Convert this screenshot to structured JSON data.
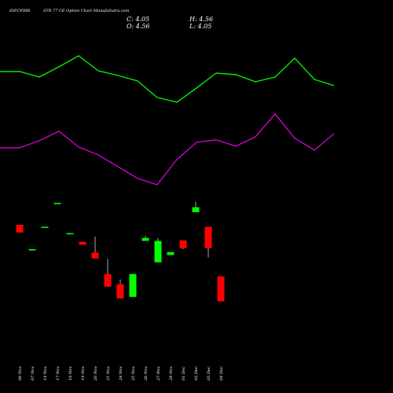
{
  "header": {
    "symbol": "IDFCFIRB",
    "subtitle": "STR 77 CE Option  Chart MunafaSutra.com",
    "close": "C: 4.05",
    "open": "O: 4.56",
    "high": "H: 4.56",
    "low": "L: 4.05"
  },
  "colors": {
    "background": "#000000",
    "up": "#00ff00",
    "down": "#ff0000",
    "line_green": "#00ee00",
    "line_magenta": "#cc00cc",
    "text": "#ffffff"
  },
  "chart_data": {
    "type": "candlestick",
    "categories": [
      "06 Nov",
      "07 Nov",
      "14 Nov",
      "17 Nov",
      "18 Nov",
      "19 Nov",
      "20 Nov",
      "21 Nov",
      "24 Nov",
      "25 Nov",
      "26 Nov",
      "27 Nov",
      "28 Nov",
      "01 Dec",
      "02 Dec",
      "03 Dec",
      "04 Dec"
    ],
    "candles": [
      {
        "open": 5.62,
        "high": 5.62,
        "low": 5.46,
        "close": 5.46
      },
      {
        "open": 5.12,
        "high": 5.12,
        "low": 5.12,
        "close": 5.12
      },
      {
        "open": 5.58,
        "high": 5.58,
        "low": 5.58,
        "close": 5.58
      },
      {
        "open": 6.07,
        "high": 6.07,
        "low": 6.07,
        "close": 6.07
      },
      {
        "open": 5.45,
        "high": 5.45,
        "low": 5.45,
        "close": 5.45
      },
      {
        "open": 5.27,
        "high": 5.27,
        "low": 5.21,
        "close": 5.21
      },
      {
        "open": 5.05,
        "high": 5.38,
        "low": 4.93,
        "close": 4.93
      },
      {
        "open": 4.61,
        "high": 4.92,
        "low": 4.35,
        "close": 4.35
      },
      {
        "open": 4.4,
        "high": 4.5,
        "low": 4.11,
        "close": 4.11
      },
      {
        "open": 4.14,
        "high": 4.61,
        "low": 4.14,
        "close": 4.61
      },
      {
        "open": 5.29,
        "high": 5.39,
        "low": 5.29,
        "close": 5.35
      },
      {
        "open": 4.85,
        "high": 5.35,
        "low": 4.85,
        "close": 5.29
      },
      {
        "open": 5.0,
        "high": 5.06,
        "low": 5.0,
        "close": 5.06
      },
      {
        "open": 5.3,
        "high": 5.3,
        "low": 5.12,
        "close": 5.14
      },
      {
        "open": 5.88,
        "high": 6.09,
        "low": 5.88,
        "close": 5.98
      },
      {
        "open": 5.58,
        "high": 5.58,
        "low": 4.95,
        "close": 5.14
      },
      {
        "open": 4.56,
        "high": 4.56,
        "low": 4.05,
        "close": 4.05
      }
    ],
    "xlabel": "",
    "ylabel": "",
    "grid": false,
    "legend": "none"
  }
}
